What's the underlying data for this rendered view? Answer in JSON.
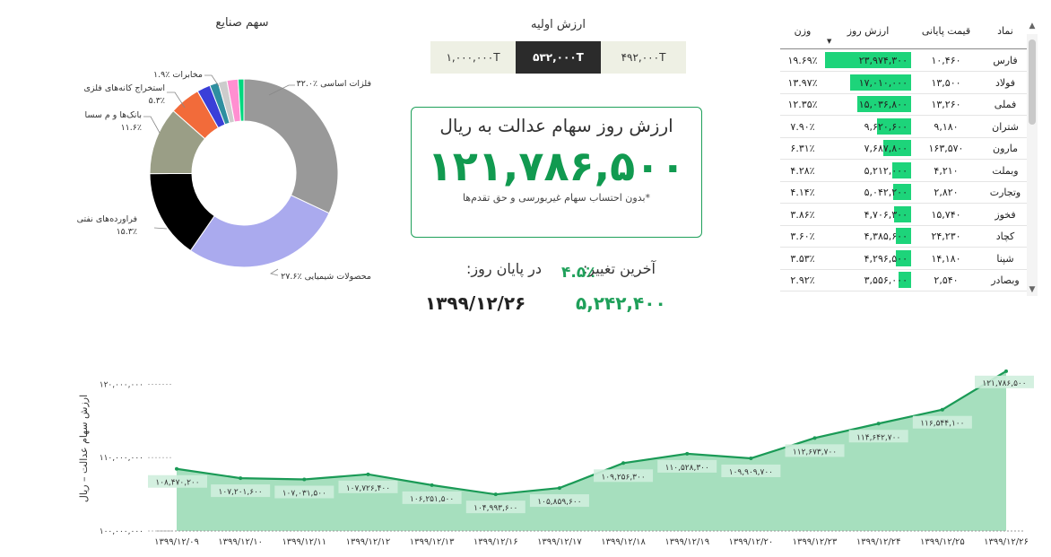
{
  "pie": {
    "title": "سهم صنایع",
    "labels": [
      {
        "text": "۳۲.۰٪ فلزات اساسی"
      },
      {
        "text": "۲۷.۶٪ محصولات شیمیایی"
      },
      {
        "text": "فراورده‌های نفتی"
      },
      {
        "text": "۱۵.۳٪"
      },
      {
        "text": "بانک‌ها و م سسا"
      },
      {
        "text": "۱۱.۶٪"
      },
      {
        "text": "استخراج کانه‌های فلزی"
      },
      {
        "text": "۵.۳٪"
      },
      {
        "text": "۱.۹٪ مخابرات"
      }
    ]
  },
  "initial_value": {
    "title": "ارزش اولیه",
    "options": [
      "۴۹۲,۰۰۰T",
      "۵۳۲,۰۰۰T",
      "۱,۰۰۰,۰۰۰T"
    ],
    "selected": "۵۳۲,۰۰۰T"
  },
  "card": {
    "title": "ارزش روز سهام عدالت به ریال",
    "value": "۱۲۱,۷۸۶,۵۰۰",
    "note": "*بدون احتساب سهام غیربورسی و حق تقدم‌ها"
  },
  "summary": {
    "last_change_label": "آخرین تغییر:",
    "last_change_value": "۴.۵٪",
    "end_of_day_label": "در پایان روز:",
    "diff_value": "۵,۲۴۲,۴۰۰",
    "date_value": "۱۳۹۹/۱۲/۲۶"
  },
  "table": {
    "headers": {
      "symbol": "نماد",
      "final_price": "قیمت پایانی",
      "day_value": "ارزش روز",
      "weight": "وزن"
    },
    "rows": [
      {
        "symbol": "فارس",
        "final_price": "۱۰,۴۶۰",
        "day_value": "۲۳,۹۷۴,۳۰۰",
        "weight": "۱۹.۶۹٪",
        "day_fraction": 1.0
      },
      {
        "symbol": "فولاد",
        "final_price": "۱۳,۵۰۰",
        "day_value": "۱۷,۰۱۰,۰۰۰",
        "weight": "۱۳.۹۷٪",
        "day_fraction": 0.71
      },
      {
        "symbol": "فملی",
        "final_price": "۱۳,۲۶۰",
        "day_value": "۱۵,۰۳۶,۸۰۰",
        "weight": "۱۲.۳۵٪",
        "day_fraction": 0.63
      },
      {
        "symbol": "شتران",
        "final_price": "۹,۱۸۰",
        "day_value": "۹,۶۲۰,۶۰۰",
        "weight": "۷.۹۰٪",
        "day_fraction": 0.4
      },
      {
        "symbol": "مارون",
        "final_price": "۱۶۳,۵۷۰",
        "day_value": "۷,۶۸۷,۸۰۰",
        "weight": "۶.۳۱٪",
        "day_fraction": 0.32
      },
      {
        "symbol": "وبملت",
        "final_price": "۴,۲۱۰",
        "day_value": "۵,۲۱۲,۰۰۰",
        "weight": "۴.۲۸٪",
        "day_fraction": 0.22
      },
      {
        "symbol": "وتجارت",
        "final_price": "۲,۸۲۰",
        "day_value": "۵,۰۴۲,۲۰۰",
        "weight": "۴.۱۴٪",
        "day_fraction": 0.21
      },
      {
        "symbol": "فخوز",
        "final_price": "۱۵,۷۴۰",
        "day_value": "۴,۷۰۶,۳۰۰",
        "weight": "۳.۸۶٪",
        "day_fraction": 0.2
      },
      {
        "symbol": "کچاد",
        "final_price": "۲۴,۲۳۰",
        "day_value": "۴,۳۸۵,۶۰۰",
        "weight": "۳.۶۰٪",
        "day_fraction": 0.18
      },
      {
        "symbol": "شپنا",
        "final_price": "۱۴,۱۸۰",
        "day_value": "۴,۲۹۶,۵۰۰",
        "weight": "۳.۵۳٪",
        "day_fraction": 0.18
      },
      {
        "symbol": "وبصادر",
        "final_price": "۲,۵۴۰",
        "day_value": "۳,۵۵۶,۰۰۰",
        "weight": "۲.۹۲٪",
        "day_fraction": 0.15
      }
    ]
  },
  "chart_data": [
    {
      "type": "pie",
      "title": "سهم صنایع",
      "slices": [
        {
          "name": "فلزات اساسی",
          "value": 32.0,
          "color": "#999999"
        },
        {
          "name": "محصولات شیمیایی",
          "value": 27.6,
          "color": "#aaaaee"
        },
        {
          "name": "فراورده‌های نفتی",
          "value": 15.3,
          "color": "#000000"
        },
        {
          "name": "بانک‌ها و م سسا",
          "value": 11.6,
          "color": "#9a9e86"
        },
        {
          "name": "استخراج کانه‌های فلزی",
          "value": 5.3,
          "color": "#f26b3a"
        },
        {
          "name": "",
          "value": 2.3,
          "color": "#3a3fd8"
        },
        {
          "name": "",
          "value": 1.5,
          "color": "#2e8fa0"
        },
        {
          "name": "",
          "value": 1.5,
          "color": "#cccccc"
        },
        {
          "name": "مخابرات",
          "value": 1.9,
          "color": "#ff8fd1"
        },
        {
          "name": "",
          "value": 1.0,
          "color": "#00d97e"
        }
      ]
    },
    {
      "type": "area",
      "title": "",
      "xlabel": "",
      "ylabel": "ارزش سهام عدالت – ریال",
      "ylim": [
        100000000,
        122500000
      ],
      "yticks": [
        {
          "value": 100000000,
          "label": "۱۰۰,۰۰۰,۰۰۰"
        },
        {
          "value": 110000000,
          "label": "۱۱۰,۰۰۰,۰۰۰"
        },
        {
          "value": 120000000,
          "label": "۱۲۰,۰۰۰,۰۰۰"
        }
      ],
      "grid": false,
      "color": "#1a9a56",
      "fill": "#a6dfbe",
      "points": [
        {
          "x": "۱۳۹۹/۱۲/۰۹",
          "y": 108470200,
          "label": "۱۰۸,۴۷۰,۲۰۰"
        },
        {
          "x": "۱۳۹۹/۱۲/۱۰",
          "y": 107201600,
          "label": "۱۰۷,۲۰۱,۶۰۰"
        },
        {
          "x": "۱۳۹۹/۱۲/۱۱",
          "y": 107031500,
          "label": "۱۰۷,۰۳۱,۵۰۰"
        },
        {
          "x": "۱۳۹۹/۱۲/۱۲",
          "y": 107726400,
          "label": "۱۰۷,۷۲۶,۴۰۰"
        },
        {
          "x": "۱۳۹۹/۱۲/۱۳",
          "y": 106251500,
          "label": "۱۰۶,۲۵۱,۵۰۰"
        },
        {
          "x": "۱۳۹۹/۱۲/۱۶",
          "y": 104993600,
          "label": "۱۰۴,۹۹۳,۶۰۰"
        },
        {
          "x": "۱۳۹۹/۱۲/۱۷",
          "y": 105859600,
          "label": "۱۰۵,۸۵۹,۶۰۰"
        },
        {
          "x": "۱۳۹۹/۱۲/۱۸",
          "y": 109256300,
          "label": "۱۰۹,۲۵۶,۳۰۰"
        },
        {
          "x": "۱۳۹۹/۱۲/۱۹",
          "y": 110528300,
          "label": "۱۱۰,۵۲۸,۳۰۰"
        },
        {
          "x": "۱۳۹۹/۱۲/۲۰",
          "y": 109909700,
          "label": "۱۰۹,۹۰۹,۷۰۰"
        },
        {
          "x": "۱۳۹۹/۱۲/۲۳",
          "y": 112673700,
          "label": "۱۱۲,۶۷۳,۷۰۰"
        },
        {
          "x": "۱۳۹۹/۱۲/۲۴",
          "y": 114642700,
          "label": "۱۱۴,۶۴۲,۷۰۰"
        },
        {
          "x": "۱۳۹۹/۱۲/۲۵",
          "y": 116544100,
          "label": "۱۱۶,۵۴۴,۱۰۰"
        },
        {
          "x": "۱۳۹۹/۱۲/۲۶",
          "y": 121786500,
          "label": "۱۲۱,۷۸۶,۵۰۰"
        }
      ]
    }
  ]
}
